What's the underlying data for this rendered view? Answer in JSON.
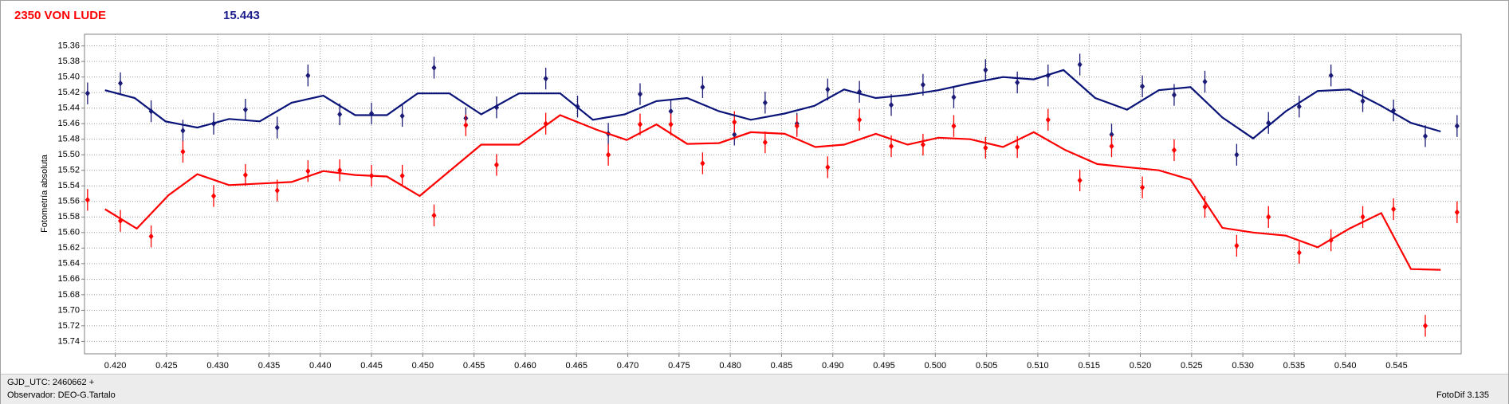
{
  "header": {
    "object": "2350 VON LUDE",
    "magnitude": "15.443"
  },
  "chart_data": {
    "type": "scatter",
    "ylabel": "Fotometría absoluta",
    "xlim": [
      0.417,
      0.5513
    ],
    "ylim": [
      15.345,
      15.756
    ],
    "y_inverted": true,
    "grid": true,
    "xticks": [
      {
        "value": 0.42,
        "label": "0.420"
      },
      {
        "value": 0.425,
        "label": "0.425"
      },
      {
        "value": 0.43,
        "label": "0.430"
      },
      {
        "value": 0.435,
        "label": "0.435"
      },
      {
        "value": 0.44,
        "label": "0.440"
      },
      {
        "value": 0.445,
        "label": "0.445"
      },
      {
        "value": 0.45,
        "label": "0.450"
      },
      {
        "value": 0.455,
        "label": "0.455"
      },
      {
        "value": 0.46,
        "label": "0.460"
      },
      {
        "value": 0.465,
        "label": "0.465"
      },
      {
        "value": 0.47,
        "label": "0.470"
      },
      {
        "value": 0.475,
        "label": "0.475"
      },
      {
        "value": 0.48,
        "label": "0.480"
      },
      {
        "value": 0.485,
        "label": "0.485"
      },
      {
        "value": 0.49,
        "label": "0.490"
      },
      {
        "value": 0.495,
        "label": "0.495"
      },
      {
        "value": 0.5,
        "label": "0.500"
      },
      {
        "value": 0.505,
        "label": "0.505"
      },
      {
        "value": 0.51,
        "label": "0.510"
      },
      {
        "value": 0.515,
        "label": "0.515"
      },
      {
        "value": 0.52,
        "label": "0.520"
      },
      {
        "value": 0.525,
        "label": "0.525"
      },
      {
        "value": 0.53,
        "label": "0.530"
      },
      {
        "value": 0.535,
        "label": "0.535"
      },
      {
        "value": 0.54,
        "label": "0.540"
      },
      {
        "value": 0.545,
        "label": "0.545"
      }
    ],
    "yticks": [
      15.36,
      15.38,
      {
        "value": 15.4,
        "label": "15.40"
      },
      15.42,
      15.44,
      15.46,
      15.48,
      {
        "value": 15.5,
        "label": "15.50"
      },
      15.52,
      15.54,
      15.56,
      15.58,
      {
        "value": 15.6,
        "label": "15.60"
      },
      15.62,
      15.64,
      15.66,
      15.68,
      {
        "value": 15.7,
        "label": "15.70"
      },
      15.72,
      15.74
    ],
    "series": [
      {
        "style": "points",
        "color": "#1c1c78",
        "error": 0.014,
        "x": [
          0.4173,
          0.4205,
          0.4235,
          0.4266,
          0.4296,
          0.4327,
          0.4358,
          0.4388,
          0.4419,
          0.445,
          0.448,
          0.4511,
          0.4542,
          0.4572,
          0.462,
          0.4651,
          0.4681,
          0.4712,
          0.4742,
          0.4773,
          0.4804,
          0.4834,
          0.4865,
          0.4895,
          0.4926,
          0.4957,
          0.4988,
          0.5018,
          0.5049,
          0.508,
          0.511,
          0.5141,
          0.5172,
          0.5202,
          0.5233,
          0.5263,
          0.5294,
          0.5325,
          0.5355,
          0.5386,
          0.5417,
          0.5447,
          0.5478,
          0.5509
        ],
        "values": [
          15.421,
          15.408,
          15.444,
          15.469,
          15.46,
          15.442,
          15.465,
          15.398,
          15.448,
          15.447,
          15.45,
          15.388,
          15.453,
          15.439,
          15.402,
          15.438,
          15.473,
          15.422,
          15.444,
          15.413,
          15.474,
          15.433,
          15.46,
          15.416,
          15.419,
          15.436,
          15.41,
          15.426,
          15.391,
          15.407,
          15.398,
          15.384,
          15.474,
          15.412,
          15.423,
          15.406,
          15.5,
          15.459,
          15.438,
          15.398,
          15.431,
          15.443,
          15.476,
          15.463
        ]
      },
      {
        "style": "points",
        "color": "#ff0000",
        "error": 0.014,
        "x": [
          0.4173,
          0.4205,
          0.4235,
          0.4266,
          0.4296,
          0.4327,
          0.4358,
          0.4388,
          0.4419,
          0.445,
          0.448,
          0.4511,
          0.4542,
          0.4572,
          0.462,
          0.4651,
          0.4681,
          0.4712,
          0.4742,
          0.4773,
          0.4804,
          0.4834,
          0.4865,
          0.4895,
          0.4926,
          0.4957,
          0.4988,
          0.5018,
          0.5049,
          0.508,
          0.511,
          0.5141,
          0.5172,
          0.5202,
          0.5233,
          0.5263,
          0.5294,
          0.5325,
          0.5355,
          0.5386,
          0.5417,
          0.5447,
          0.5478,
          0.5509
        ],
        "values": [
          15.558,
          15.585,
          15.605,
          15.496,
          15.553,
          15.526,
          15.546,
          15.521,
          15.52,
          15.527,
          15.527,
          15.578,
          15.462,
          15.513,
          15.46,
          null,
          15.5,
          15.461,
          15.461,
          15.511,
          15.458,
          15.484,
          15.463,
          15.516,
          15.455,
          15.489,
          15.487,
          15.463,
          15.491,
          15.49,
          15.455,
          15.533,
          15.489,
          15.542,
          15.494,
          15.567,
          15.617,
          15.58,
          15.626,
          15.61,
          15.58,
          15.57,
          15.72,
          15.574
        ]
      },
      {
        "style": "line",
        "color": "#0a1478",
        "x": [
          0.419,
          0.4219,
          0.4249,
          0.428,
          0.4311,
          0.4341,
          0.4372,
          0.4403,
          0.4434,
          0.4465,
          0.4495,
          0.4526,
          0.4557,
          0.4594,
          0.4634,
          0.4666,
          0.4697,
          0.4728,
          0.4758,
          0.4789,
          0.482,
          0.4853,
          0.4882,
          0.4911,
          0.4942,
          0.4973,
          0.5003,
          0.5034,
          0.5066,
          0.5096,
          0.5125,
          0.5156,
          0.5187,
          0.5218,
          0.5249,
          0.528,
          0.531,
          0.5342,
          0.5373,
          0.5404,
          0.5435,
          0.5464,
          0.5493
        ],
        "values": [
          15.417,
          15.427,
          15.457,
          15.465,
          15.454,
          15.457,
          15.433,
          15.424,
          15.449,
          15.449,
          15.421,
          15.421,
          15.448,
          15.421,
          15.421,
          15.455,
          15.448,
          15.431,
          15.427,
          15.444,
          15.455,
          15.447,
          15.437,
          15.416,
          15.427,
          15.423,
          15.417,
          15.408,
          15.4,
          15.403,
          15.391,
          15.427,
          15.442,
          15.417,
          15.413,
          15.452,
          15.479,
          15.444,
          15.418,
          15.416,
          15.437,
          15.459,
          15.47
        ]
      },
      {
        "style": "line",
        "color": "#ff0000",
        "x": [
          0.419,
          0.4221,
          0.4252,
          0.428,
          0.4311,
          0.4342,
          0.4372,
          0.4403,
          0.4434,
          0.4465,
          0.4497,
          0.4557,
          0.4594,
          0.4634,
          0.467,
          0.4699,
          0.4728,
          0.4758,
          0.4789,
          0.482,
          0.4853,
          0.4883,
          0.4911,
          0.4942,
          0.4973,
          0.5003,
          0.5034,
          0.5066,
          0.5096,
          0.5127,
          0.5158,
          0.5187,
          0.5218,
          0.5249,
          0.528,
          0.531,
          0.5342,
          0.5373,
          0.5404,
          0.5435,
          0.5464,
          0.5493
        ],
        "values": [
          15.57,
          15.595,
          15.552,
          15.525,
          15.539,
          15.537,
          15.535,
          15.521,
          15.526,
          15.528,
          15.553,
          15.487,
          15.487,
          15.449,
          15.468,
          15.481,
          15.461,
          15.486,
          15.485,
          15.471,
          15.473,
          15.49,
          15.487,
          15.473,
          15.487,
          15.478,
          15.48,
          15.49,
          15.471,
          15.494,
          15.512,
          15.516,
          15.52,
          15.532,
          15.594,
          15.6,
          15.604,
          15.619,
          15.595,
          15.575,
          15.647,
          15.648
        ]
      }
    ]
  },
  "footer": {
    "gjd": "GJD_UTC: 2460662 +",
    "observer": "Observador: DEO-G.Tartalo",
    "software": "FotoDif 3.135"
  }
}
